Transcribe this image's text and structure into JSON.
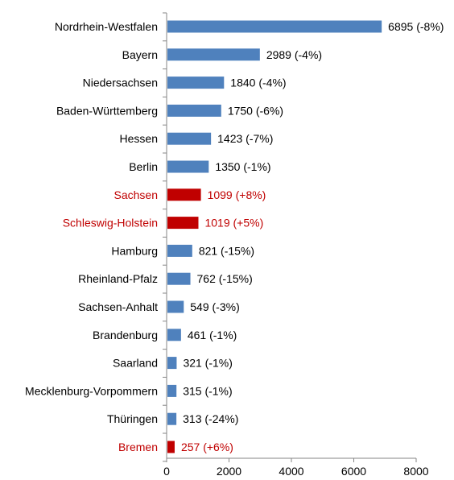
{
  "chart_data": {
    "type": "bar",
    "orientation": "horizontal",
    "categories": [
      "Nordrhein-Westfalen",
      "Bayern",
      "Niedersachsen",
      "Baden-Württemberg",
      "Hessen",
      "Berlin",
      "Sachsen",
      "Schleswig-Holstein",
      "Hamburg",
      "Rheinland-Pfalz",
      "Sachsen-Anhalt",
      "Brandenburg",
      "Saarland",
      "Mecklenburg-Vorpommern",
      "Thüringen",
      "Bremen"
    ],
    "values": [
      6895,
      2989,
      1840,
      1750,
      1423,
      1350,
      1099,
      1019,
      821,
      762,
      549,
      461,
      321,
      315,
      313,
      257
    ],
    "data_labels": [
      "6895 (-8%)",
      "2989 (-4%)",
      "1840 (-4%)",
      "1750 (-6%)",
      "1423 (-7%)",
      "1350 (-1%)",
      "1099 (+8%)",
      "1019 (+5%)",
      "821 (-15%)",
      "762 (-15%)",
      "549 (-3%)",
      "461 (-1%)",
      "321 (-1%)",
      "315 (-1%)",
      "313 (-24%)",
      "257 (+6%)"
    ],
    "changes_percent": [
      -8,
      -4,
      -4,
      -6,
      -7,
      -1,
      8,
      5,
      -15,
      -15,
      -3,
      -1,
      -1,
      -1,
      -24,
      6
    ],
    "xlim": [
      0,
      8000
    ],
    "x_ticks": [
      0,
      2000,
      4000,
      6000,
      8000
    ],
    "grid": false,
    "title": "",
    "xlabel": "",
    "ylabel": "",
    "colors": {
      "decrease_bar": "#4f81bd",
      "increase_bar": "#c00000",
      "increase_label": "#c00000",
      "decrease_label": "#000000",
      "category_label_increase": "#c00000",
      "category_label_decrease": "#000000",
      "axis": "#868686"
    }
  }
}
